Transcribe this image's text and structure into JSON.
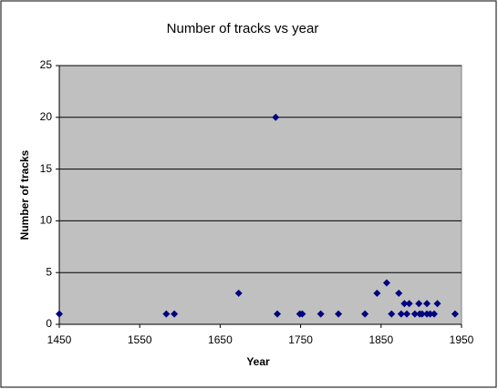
{
  "chart_data": {
    "type": "scatter",
    "title": "Number of tracks vs year",
    "x_label": "Year",
    "y_label": "Number of tracks",
    "x": [
      1450,
      1583,
      1593,
      1673,
      1719,
      1721,
      1749,
      1752,
      1775,
      1797,
      1830,
      1845,
      1857,
      1863,
      1872,
      1875,
      1879,
      1882,
      1885,
      1892,
      1897,
      1898,
      1901,
      1907,
      1907,
      1911,
      1916,
      1920,
      1942
    ],
    "values": [
      1,
      1,
      1,
      3,
      20,
      1,
      1,
      1,
      1,
      1,
      1,
      3,
      4,
      1,
      3,
      1,
      2,
      1,
      2,
      1,
      2,
      1,
      1,
      2,
      1,
      1,
      1,
      2,
      1
    ],
    "color": "#000080",
    "xlim": [
      1450,
      1950
    ],
    "xticks": [
      1450,
      1550,
      1650,
      1750,
      1850,
      1950
    ],
    "ylim": [
      0,
      25
    ],
    "yticks": [
      0,
      5,
      10,
      15,
      20,
      25
    ],
    "grid": true
  }
}
